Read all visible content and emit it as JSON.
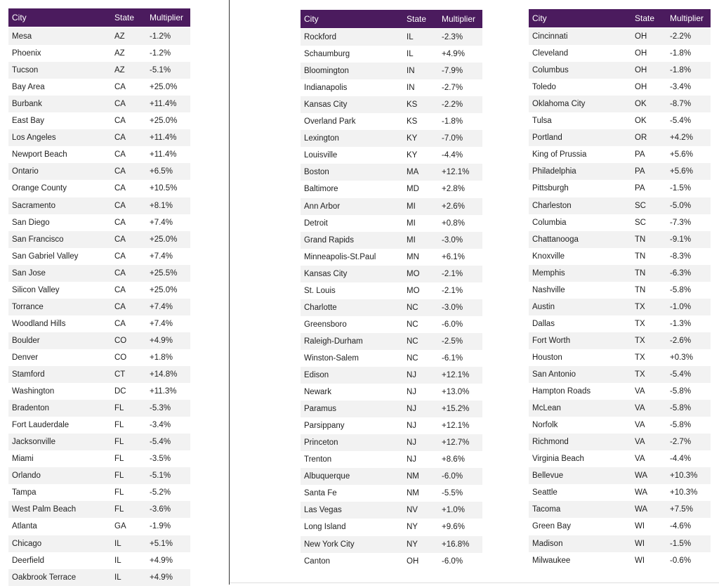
{
  "tables": [
    {
      "header": [
        "City",
        "State",
        "Multiplier"
      ],
      "rows": [
        [
          "Mesa",
          "AZ",
          "-1.2%"
        ],
        [
          "Phoenix",
          "AZ",
          "-1.2%"
        ],
        [
          "Tucson",
          "AZ",
          "-5.1%"
        ],
        [
          "Bay Area",
          "CA",
          "+25.0%"
        ],
        [
          "Burbank",
          "CA",
          "+11.4%"
        ],
        [
          "East Bay",
          "CA",
          "+25.0%"
        ],
        [
          "Los Angeles",
          "CA",
          "+11.4%"
        ],
        [
          "Newport Beach",
          "CA",
          "+11.4%"
        ],
        [
          "Ontario",
          "CA",
          "+6.5%"
        ],
        [
          "Orange County",
          "CA",
          "+10.5%"
        ],
        [
          "Sacramento",
          "CA",
          "+8.1%"
        ],
        [
          "San Diego",
          "CA",
          "+7.4%"
        ],
        [
          "San Francisco",
          "CA",
          "+25.0%"
        ],
        [
          "San Gabriel Valley",
          "CA",
          "+7.4%"
        ],
        [
          "San Jose",
          "CA",
          "+25.5%"
        ],
        [
          "Silicon Valley",
          "CA",
          "+25.0%"
        ],
        [
          "Torrance",
          "CA",
          "+7.4%"
        ],
        [
          "Woodland Hills",
          "CA",
          "+7.4%"
        ],
        [
          "Boulder",
          "CO",
          "+4.9%"
        ],
        [
          "Denver",
          "CO",
          "+1.8%"
        ],
        [
          "Stamford",
          "CT",
          "+14.8%"
        ],
        [
          "Washington",
          "DC",
          "+11.3%"
        ],
        [
          "Bradenton",
          "FL",
          "-5.3%"
        ],
        [
          "Fort Lauderdale",
          "FL",
          "-3.4%"
        ],
        [
          "Jacksonville",
          "FL",
          "-5.4%"
        ],
        [
          "Miami",
          "FL",
          "-3.5%"
        ],
        [
          "Orlando",
          "FL",
          "-5.1%"
        ],
        [
          "Tampa",
          "FL",
          "-5.2%"
        ],
        [
          "West Palm Beach",
          "FL",
          "-3.6%"
        ],
        [
          "Atlanta",
          "GA",
          "-1.9%"
        ],
        [
          "Chicago",
          "IL",
          "+5.1%"
        ],
        [
          "Deerfield",
          "IL",
          "+4.9%"
        ],
        [
          "Oakbrook Terrace",
          "IL",
          "+4.9%"
        ]
      ]
    },
    {
      "header": [
        "City",
        "State",
        "Multiplier"
      ],
      "rows": [
        [
          "Rockford",
          "IL",
          "-2.3%"
        ],
        [
          "Schaumburg",
          "IL",
          "+4.9%"
        ],
        [
          "Bloomington",
          "IN",
          "-7.9%"
        ],
        [
          "Indianapolis",
          "IN",
          "-2.7%"
        ],
        [
          "Kansas City",
          "KS",
          "-2.2%"
        ],
        [
          "Overland Park",
          "KS",
          "-1.8%"
        ],
        [
          "Lexington",
          "KY",
          "-7.0%"
        ],
        [
          "Louisville",
          "KY",
          "-4.4%"
        ],
        [
          "Boston",
          "MA",
          "+12.1%"
        ],
        [
          "Baltimore",
          "MD",
          "+2.8%"
        ],
        [
          "Ann Arbor",
          "MI",
          "+2.6%"
        ],
        [
          "Detroit",
          "MI",
          "+0.8%"
        ],
        [
          "Grand Rapids",
          "MI",
          "-3.0%"
        ],
        [
          "Minneapolis-St.Paul",
          "MN",
          "+6.1%"
        ],
        [
          "Kansas City",
          "MO",
          "-2.1%"
        ],
        [
          "St. Louis",
          "MO",
          "-2.1%"
        ],
        [
          "Charlotte",
          "NC",
          "-3.0%"
        ],
        [
          "Greensboro",
          "NC",
          "-6.0%"
        ],
        [
          "Raleigh-Durham",
          "NC",
          "-2.5%"
        ],
        [
          "Winston-Salem",
          "NC",
          "-6.1%"
        ],
        [
          "Edison",
          "NJ",
          "+12.1%"
        ],
        [
          "Newark",
          "NJ",
          "+13.0%"
        ],
        [
          "Paramus",
          "NJ",
          "+15.2%"
        ],
        [
          "Parsippany",
          "NJ",
          "+12.1%"
        ],
        [
          "Princeton",
          "NJ",
          "+12.7%"
        ],
        [
          "Trenton",
          "NJ",
          "+8.6%"
        ],
        [
          "Albuquerque",
          "NM",
          "-6.0%"
        ],
        [
          "Santa Fe",
          "NM",
          "-5.5%"
        ],
        [
          "Las Vegas",
          "NV",
          "+1.0%"
        ],
        [
          "Long Island",
          "NY",
          "+9.6%"
        ],
        [
          "New York City",
          "NY",
          "+16.8%"
        ],
        [
          "Canton",
          "OH",
          "-6.0%"
        ]
      ]
    },
    {
      "header": [
        "City",
        "State",
        "Multiplier"
      ],
      "rows": [
        [
          "Cincinnati",
          "OH",
          "-2.2%"
        ],
        [
          "Cleveland",
          "OH",
          "-1.8%"
        ],
        [
          "Columbus",
          "OH",
          "-1.8%"
        ],
        [
          "Toledo",
          "OH",
          "-3.4%"
        ],
        [
          "Oklahoma City",
          "OK",
          "-8.7%"
        ],
        [
          "Tulsa",
          "OK",
          "-5.4%"
        ],
        [
          "Portland",
          "OR",
          "+4.2%"
        ],
        [
          "King of Prussia",
          "PA",
          "+5.6%"
        ],
        [
          "Philadelphia",
          "PA",
          "+5.6%"
        ],
        [
          "Pittsburgh",
          "PA",
          "-1.5%"
        ],
        [
          "Charleston",
          "SC",
          "-5.0%"
        ],
        [
          "Columbia",
          "SC",
          "-7.3%"
        ],
        [
          "Chattanooga",
          "TN",
          "-9.1%"
        ],
        [
          "Knoxville",
          "TN",
          "-8.3%"
        ],
        [
          "Memphis",
          "TN",
          "-6.3%"
        ],
        [
          "Nashville",
          "TN",
          "-5.8%"
        ],
        [
          "Austin",
          "TX",
          "-1.0%"
        ],
        [
          "Dallas",
          "TX",
          "-1.3%"
        ],
        [
          "Fort Worth",
          "TX",
          "-2.6%"
        ],
        [
          "Houston",
          "TX",
          "+0.3%"
        ],
        [
          "San Antonio",
          "TX",
          "-5.4%"
        ],
        [
          "Hampton Roads",
          "VA",
          "-5.8%"
        ],
        [
          "McLean",
          "VA",
          "-5.8%"
        ],
        [
          "Norfolk",
          "VA",
          "-5.8%"
        ],
        [
          "Richmond",
          "VA",
          "-2.7%"
        ],
        [
          "Virginia Beach",
          "VA",
          "-4.4%"
        ],
        [
          "Bellevue",
          "WA",
          "+10.3%"
        ],
        [
          "Seattle",
          "WA",
          "+10.3%"
        ],
        [
          "Tacoma",
          "WA",
          "+7.5%"
        ],
        [
          "Green Bay",
          "WI",
          "-4.6%"
        ],
        [
          "Madison",
          "WI",
          "-1.5%"
        ],
        [
          "Milwaukee",
          "WI",
          "-0.6%"
        ]
      ]
    }
  ]
}
